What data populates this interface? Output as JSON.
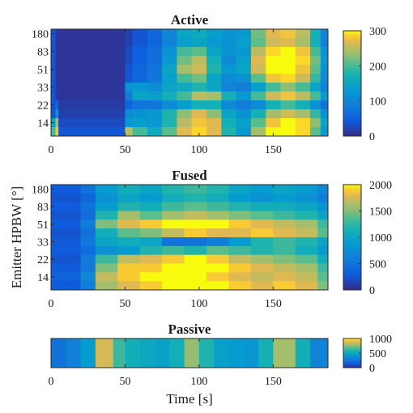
{
  "chart_data": [
    {
      "type": "heatmap",
      "title": "Active",
      "xlabel": "",
      "ylabel": "",
      "x_range_s": [
        0,
        187
      ],
      "xticks": [
        "0",
        "50",
        "100",
        "150"
      ],
      "yticks": [
        "180",
        "83",
        "51",
        "33",
        "22",
        "14"
      ],
      "row_labels_top_to_bottom": [
        "180",
        "",
        "83",
        "",
        "51",
        "",
        "33",
        "",
        "22",
        "",
        "14",
        ""
      ],
      "colorbar": {
        "min": 0,
        "max": 300,
        "ticks": [
          "300",
          "200",
          "100",
          "0"
        ]
      },
      "colormap": "parula",
      "bands": [
        {
          "t0": 0,
          "t1": 3,
          "rows": [
            40,
            40,
            40,
            40,
            40,
            40,
            40,
            40,
            40,
            40,
            150,
            200
          ]
        },
        {
          "t0": 3,
          "t1": 5,
          "rows": [
            10,
            10,
            10,
            10,
            10,
            10,
            15,
            15,
            60,
            120,
            240,
            280
          ]
        },
        {
          "t0": 5,
          "t1": 50,
          "rows": [
            10,
            10,
            10,
            10,
            10,
            10,
            10,
            10,
            15,
            20,
            30,
            40
          ]
        },
        {
          "t0": 50,
          "t1": 55,
          "rows": [
            20,
            20,
            30,
            30,
            40,
            40,
            120,
            90,
            60,
            110,
            130,
            250
          ]
        },
        {
          "t0": 55,
          "t1": 65,
          "rows": [
            40,
            40,
            50,
            50,
            60,
            60,
            130,
            150,
            80,
            120,
            140,
            200
          ]
        },
        {
          "t0": 65,
          "t1": 75,
          "rows": [
            60,
            60,
            70,
            70,
            80,
            80,
            110,
            140,
            80,
            130,
            130,
            160
          ]
        },
        {
          "t0": 75,
          "t1": 85,
          "rows": [
            100,
            100,
            120,
            130,
            150,
            140,
            150,
            170,
            110,
            180,
            180,
            210
          ]
        },
        {
          "t0": 85,
          "t1": 95,
          "rows": [
            150,
            140,
            200,
            220,
            240,
            200,
            160,
            200,
            140,
            230,
            250,
            270
          ]
        },
        {
          "t0": 95,
          "t1": 105,
          "rows": [
            160,
            150,
            210,
            250,
            260,
            220,
            180,
            250,
            170,
            270,
            280,
            290
          ]
        },
        {
          "t0": 105,
          "t1": 115,
          "rows": [
            140,
            130,
            150,
            170,
            180,
            150,
            150,
            240,
            170,
            230,
            270,
            270
          ]
        },
        {
          "t0": 115,
          "t1": 125,
          "rows": [
            120,
            120,
            120,
            110,
            130,
            110,
            100,
            170,
            110,
            150,
            170,
            180
          ]
        },
        {
          "t0": 125,
          "t1": 135,
          "rows": [
            130,
            140,
            130,
            140,
            150,
            120,
            90,
            130,
            90,
            120,
            140,
            130
          ]
        },
        {
          "t0": 135,
          "t1": 145,
          "rows": [
            220,
            210,
            250,
            270,
            260,
            210,
            140,
            200,
            110,
            170,
            210,
            240
          ]
        },
        {
          "t0": 145,
          "t1": 155,
          "rows": [
            270,
            260,
            290,
            300,
            300,
            280,
            200,
            260,
            170,
            240,
            280,
            300
          ]
        },
        {
          "t0": 155,
          "t1": 165,
          "rows": [
            280,
            270,
            300,
            300,
            300,
            290,
            230,
            280,
            200,
            260,
            300,
            300
          ]
        },
        {
          "t0": 165,
          "t1": 175,
          "rows": [
            250,
            240,
            280,
            290,
            280,
            260,
            200,
            250,
            170,
            240,
            290,
            290
          ]
        },
        {
          "t0": 175,
          "t1": 182,
          "rows": [
            170,
            170,
            200,
            220,
            210,
            190,
            150,
            200,
            120,
            190,
            230,
            210
          ]
        },
        {
          "t0": 182,
          "t1": 187,
          "rows": [
            100,
            100,
            120,
            130,
            120,
            110,
            100,
            130,
            80,
            120,
            150,
            130
          ]
        }
      ]
    },
    {
      "type": "heatmap",
      "title": "Fused",
      "xlabel": "",
      "ylabel": "Emitter HPBW [°]",
      "x_range_s": [
        0,
        187
      ],
      "xticks": [
        "0",
        "50",
        "100",
        "150"
      ],
      "yticks": [
        "180",
        "83",
        "51",
        "33",
        "22",
        "14"
      ],
      "row_labels_top_to_bottom": [
        "180",
        "",
        "83",
        "",
        "51",
        "",
        "33",
        "",
        "22",
        "",
        "14",
        ""
      ],
      "colorbar": {
        "min": 0,
        "max": 2000,
        "ticks": [
          "2000",
          "1500",
          "1000",
          "500",
          "0"
        ]
      },
      "colormap": "parula",
      "bands": [
        {
          "t0": 0,
          "t1": 20,
          "rows": [
            300,
            250,
            300,
            250,
            300,
            250,
            280,
            300,
            250,
            300,
            350,
            300
          ]
        },
        {
          "t0": 20,
          "t1": 30,
          "rows": [
            500,
            400,
            500,
            450,
            600,
            500,
            550,
            450,
            600,
            550,
            700,
            600
          ]
        },
        {
          "t0": 30,
          "t1": 45,
          "rows": [
            900,
            800,
            900,
            1200,
            1500,
            1100,
            1000,
            800,
            1300,
            1500,
            1700,
            1600
          ]
        },
        {
          "t0": 45,
          "t1": 60,
          "rows": [
            1100,
            1000,
            1200,
            1600,
            1800,
            1400,
            1100,
            900,
            1700,
            1900,
            1900,
            1800
          ]
        },
        {
          "t0": 60,
          "t1": 75,
          "rows": [
            1000,
            900,
            1100,
            1400,
            1900,
            1500,
            1000,
            1200,
            1800,
            1900,
            2000,
            1900
          ]
        },
        {
          "t0": 75,
          "t1": 90,
          "rows": [
            1200,
            1100,
            1300,
            1600,
            2000,
            1700,
            500,
            1300,
            1900,
            2000,
            2000,
            2000
          ]
        },
        {
          "t0": 90,
          "t1": 105,
          "rows": [
            1300,
            1200,
            1400,
            1700,
            2000,
            1900,
            500,
            1200,
            2000,
            2000,
            2000,
            2000
          ]
        },
        {
          "t0": 105,
          "t1": 120,
          "rows": [
            1200,
            1100,
            1300,
            1600,
            2000,
            1800,
            600,
            1400,
            1900,
            2000,
            1900,
            2000
          ]
        },
        {
          "t0": 120,
          "t1": 135,
          "rows": [
            1000,
            900,
            1200,
            1500,
            1900,
            1800,
            900,
            1300,
            1700,
            1900,
            1800,
            1900
          ]
        },
        {
          "t0": 135,
          "t1": 150,
          "rows": [
            900,
            800,
            1100,
            1400,
            1800,
            1900,
            1200,
            1200,
            1600,
            1800,
            1700,
            1800
          ]
        },
        {
          "t0": 150,
          "t1": 165,
          "rows": [
            1000,
            900,
            1100,
            1300,
            1700,
            1800,
            1300,
            1300,
            1500,
            1700,
            1800,
            1900
          ]
        },
        {
          "t0": 165,
          "t1": 180,
          "rows": [
            900,
            800,
            1000,
            1200,
            1600,
            1700,
            1200,
            1100,
            1400,
            1600,
            1700,
            1800
          ]
        },
        {
          "t0": 180,
          "t1": 187,
          "rows": [
            700,
            600,
            800,
            1000,
            1300,
            1400,
            1000,
            900,
            1100,
            1300,
            1400,
            1500
          ]
        }
      ]
    },
    {
      "type": "heatmap",
      "title": "Passive",
      "xlabel": "Time [s]",
      "ylabel": "",
      "x_range_s": [
        0,
        187
      ],
      "xticks": [
        "0",
        "50",
        "100",
        "150"
      ],
      "yticks": [],
      "colorbar": {
        "min": 0,
        "max": 1000,
        "ticks": [
          "1000",
          "500",
          "0"
        ]
      },
      "colormap": "parula",
      "bands": [
        {
          "t0": 0,
          "t1": 10,
          "rows": [
            250
          ]
        },
        {
          "t0": 10,
          "t1": 20,
          "rows": [
            320
          ]
        },
        {
          "t0": 20,
          "t1": 30,
          "rows": [
            450
          ]
        },
        {
          "t0": 30,
          "t1": 42,
          "rows": [
            880
          ]
        },
        {
          "t0": 42,
          "t1": 50,
          "rows": [
            650
          ]
        },
        {
          "t0": 50,
          "t1": 60,
          "rows": [
            560
          ]
        },
        {
          "t0": 60,
          "t1": 70,
          "rows": [
            520
          ]
        },
        {
          "t0": 70,
          "t1": 80,
          "rows": [
            480
          ]
        },
        {
          "t0": 80,
          "t1": 90,
          "rows": [
            560
          ]
        },
        {
          "t0": 90,
          "t1": 100,
          "rows": [
            780
          ]
        },
        {
          "t0": 100,
          "t1": 110,
          "rows": [
            600
          ]
        },
        {
          "t0": 110,
          "t1": 120,
          "rows": [
            470
          ]
        },
        {
          "t0": 120,
          "t1": 130,
          "rows": [
            450
          ]
        },
        {
          "t0": 130,
          "t1": 140,
          "rows": [
            420
          ]
        },
        {
          "t0": 140,
          "t1": 150,
          "rows": [
            580
          ]
        },
        {
          "t0": 150,
          "t1": 165,
          "rows": [
            800
          ]
        },
        {
          "t0": 165,
          "t1": 175,
          "rows": [
            560
          ]
        },
        {
          "t0": 175,
          "t1": 187,
          "rows": [
            330
          ]
        }
      ]
    }
  ]
}
